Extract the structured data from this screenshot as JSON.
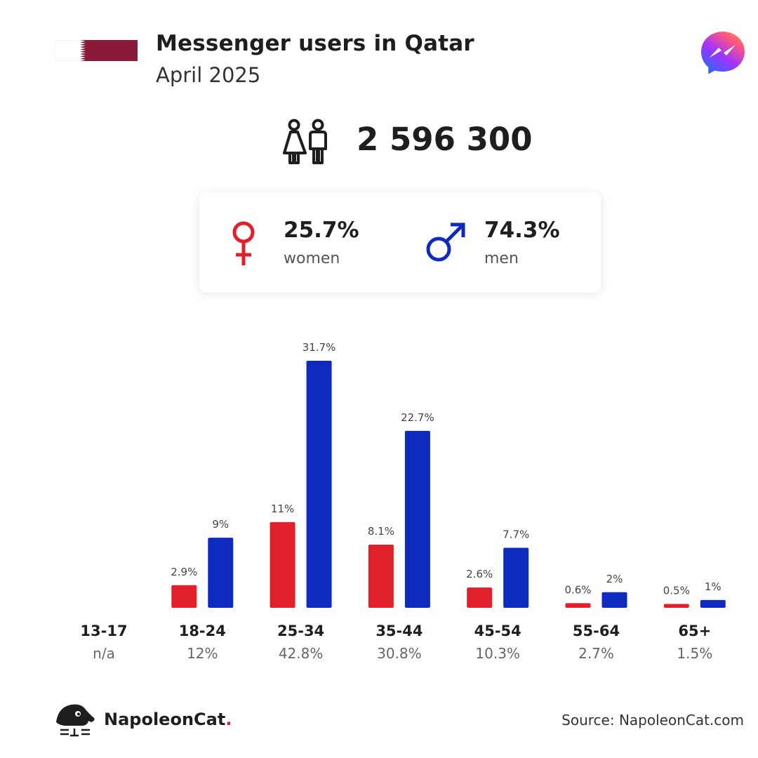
{
  "header": {
    "title": "Messenger users in Qatar",
    "subtitle": "April 2025"
  },
  "total": {
    "value": "2 596 300"
  },
  "gender": {
    "women": {
      "pct": "25.7%",
      "label": "women"
    },
    "men": {
      "pct": "74.3%",
      "label": "men"
    }
  },
  "colors": {
    "women": "#e0202a",
    "men": "#0f2bbf",
    "flag_maroon": "#8a1a3a"
  },
  "icons": {
    "flag": "qatar-flag",
    "app": "messenger-logo",
    "people": "people-icon",
    "female": "female-symbol-icon",
    "male": "male-symbol-icon",
    "brand": "napoleoncat-logo"
  },
  "chart_data": {
    "type": "bar",
    "categories": [
      "13-17",
      "18-24",
      "25-34",
      "35-44",
      "45-54",
      "55-64",
      "65+"
    ],
    "category_totals": [
      "n/a",
      "12%",
      "42.8%",
      "30.8%",
      "10.3%",
      "2.7%",
      "1.5%"
    ],
    "series": [
      {
        "key": "women",
        "values": [
          null,
          2.9,
          11,
          8.1,
          2.6,
          0.6,
          0.5
        ],
        "labels": [
          "",
          "2.9%",
          "11%",
          "8.1%",
          "2.6%",
          "0.6%",
          "0.5%"
        ]
      },
      {
        "key": "men",
        "values": [
          null,
          9,
          31.7,
          22.7,
          7.7,
          2,
          1
        ],
        "labels": [
          "",
          "9%",
          "31.7%",
          "22.7%",
          "7.7%",
          "2%",
          "1%"
        ]
      }
    ],
    "ylim": [
      0,
      31.7
    ],
    "grid": false
  },
  "footer": {
    "brand": "NapoleonCat",
    "brand_dot": ".",
    "source": "Source: NapoleonCat.com"
  }
}
